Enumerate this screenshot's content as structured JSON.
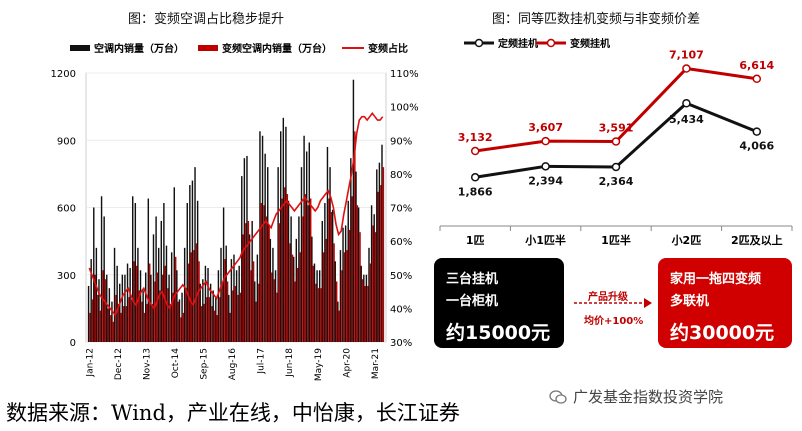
{
  "colors": {
    "dark": "#111111",
    "red": "#c00000",
    "line_red": "#e01010",
    "grid": "#e0e0e0"
  },
  "left_title": "图：变频空调占比稳步提升",
  "right_title": "图：同等匹数挂机变频与非变频价差",
  "left_legend": {
    "a": "空调内销量（万台）",
    "b": "变频空调内销量（万台）",
    "c": "变频占比"
  },
  "right_legend": {
    "a": "定频挂机",
    "b": "变频挂机"
  },
  "chart_data": [
    {
      "type": "bar",
      "title": "图：变频空调占比稳步提升",
      "y_left_ticks": [
        "1200",
        "900",
        "600",
        "300",
        "0"
      ],
      "y_right_ticks": [
        "110%",
        "100%",
        "90%",
        "80%",
        "70%",
        "60%",
        "50%",
        "40%",
        "30%"
      ],
      "ylim_left": [
        0,
        1200
      ],
      "ylim_right": [
        30,
        110
      ],
      "x_tick_labels": [
        "Jan-12",
        "Dec-12",
        "Nov-13",
        "Oct-14",
        "Sep-15",
        "Aug-16",
        "Jul-17",
        "Jun-18",
        "May-19",
        "Apr-20",
        "Mar-21"
      ],
      "x_tick_index": [
        0,
        11,
        22,
        33,
        44,
        55,
        66,
        77,
        88,
        99,
        110
      ],
      "series": [
        {
          "name": "空调内销量（万台）",
          "axis": "left",
          "values": [
            250,
            370,
            600,
            420,
            280,
            650,
            560,
            300,
            240,
            180,
            420,
            340,
            260,
            300,
            300,
            350,
            330,
            650,
            620,
            420,
            320,
            230,
            310,
            640,
            300,
            480,
            560,
            420,
            540,
            620,
            430,
            300,
            400,
            690,
            320,
            190,
            220,
            420,
            620,
            700,
            720,
            780,
            630,
            260,
            280,
            340,
            330,
            260,
            230,
            200,
            320,
            420,
            600,
            430,
            210,
            370,
            390,
            320,
            340,
            740,
            820,
            830,
            480,
            540,
            270,
            390,
            940,
            920,
            840,
            780,
            460,
            420,
            320,
            780,
            940,
            1000,
            960,
            630,
            560,
            380,
            460,
            560,
            780,
            920,
            850,
            890,
            470,
            350,
            320,
            320,
            540,
            620,
            870,
            780,
            590,
            360,
            180,
            410,
            510,
            520,
            630,
            820,
            1170,
            760,
            600,
            340,
            300,
            300,
            420,
            610,
            570,
            770,
            800,
            880
          ],
          "bar_color": "#111111"
        },
        {
          "name": "变频空调内销量（万台）",
          "axis": "left",
          "values": [
            130,
            190,
            300,
            210,
            140,
            320,
            280,
            150,
            120,
            90,
            210,
            170,
            130,
            160,
            160,
            200,
            190,
            360,
            340,
            230,
            180,
            130,
            170,
            350,
            170,
            270,
            310,
            230,
            300,
            340,
            240,
            170,
            220,
            380,
            180,
            110,
            130,
            240,
            350,
            400,
            410,
            440,
            360,
            160,
            170,
            200,
            200,
            160,
            140,
            120,
            200,
            260,
            370,
            270,
            130,
            230,
            250,
            210,
            220,
            480,
            530,
            540,
            320,
            360,
            180,
            260,
            620,
            610,
            560,
            520,
            310,
            280,
            220,
            530,
            640,
            690,
            660,
            440,
            390,
            270,
            330,
            400,
            560,
            660,
            610,
            640,
            340,
            260,
            240,
            240,
            400,
            460,
            640,
            580,
            440,
            270,
            140,
            320,
            400,
            410,
            500,
            650,
            940,
            610,
            490,
            280,
            250,
            250,
            350,
            520,
            490,
            670,
            700,
            780
          ],
          "bar_color": "#c00000"
        },
        {
          "name": "变频占比",
          "axis": "right",
          "values": [
            52,
            50,
            48,
            46,
            44,
            43,
            42,
            41,
            40,
            39,
            38,
            40,
            42,
            44,
            45,
            46,
            44,
            42,
            41,
            43,
            45,
            46,
            44,
            42,
            41,
            40,
            42,
            44,
            45,
            43,
            41,
            40,
            42,
            44,
            45,
            46,
            47,
            46,
            44,
            42,
            41,
            43,
            45,
            46,
            47,
            48,
            46,
            45,
            44,
            43,
            45,
            47,
            49,
            50,
            51,
            52,
            53,
            54,
            55,
            57,
            58,
            59,
            60,
            61,
            62,
            63,
            64,
            65,
            66,
            65,
            64,
            66,
            68,
            69,
            70,
            71,
            72,
            71,
            70,
            69,
            70,
            71,
            72,
            73,
            72,
            71,
            70,
            69,
            70,
            72,
            73,
            74,
            75,
            73,
            70,
            65,
            62,
            63,
            68,
            72,
            76,
            80,
            85,
            92,
            96,
            97,
            97,
            96,
            97,
            98,
            97,
            96,
            96,
            97
          ],
          "line_color": "#e01010"
        }
      ]
    },
    {
      "type": "line",
      "title": "图：同等匹数挂机变频与非变频价差",
      "categories": [
        "1匹",
        "小1匹半",
        "1匹半",
        "小2匹",
        "2匹及以上"
      ],
      "series": [
        {
          "name": "定频挂机",
          "values": [
            1866,
            2394,
            2364,
            5434,
            4066
          ],
          "labels": [
            "1,866",
            "2,394",
            "2,364",
            "5,434",
            "4,066"
          ]
        },
        {
          "name": "变频挂机",
          "values": [
            3132,
            3607,
            3591,
            7107,
            6614
          ],
          "labels": [
            "3,132",
            "3,607",
            "3,591",
            "7,107",
            "6,614"
          ]
        }
      ],
      "ylim": [
        0,
        8000
      ]
    }
  ],
  "box_left": {
    "line1": "三台挂机",
    "line2": "一台柜机",
    "price": "约15000元"
  },
  "arrow": {
    "top": "产品升级",
    "bottom": "均价+100%"
  },
  "box_right": {
    "line1": "家用一拖四变频",
    "line2": "多联机",
    "price": "约30000元"
  },
  "source": "数据来源：Wind，产业在线，中怡康，长江证券",
  "watermark": "广发基金指数投资学院"
}
